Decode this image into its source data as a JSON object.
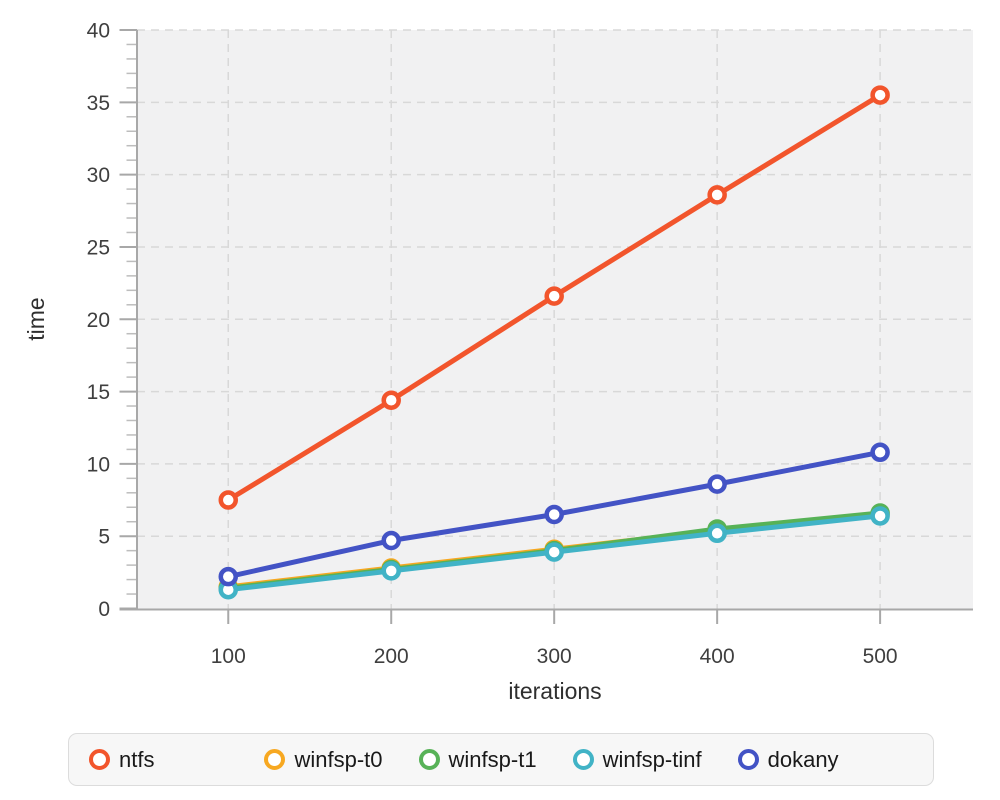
{
  "chart_data": {
    "type": "line",
    "title": "",
    "xlabel": "iterations",
    "ylabel": "time",
    "x": [
      100,
      200,
      300,
      400,
      500
    ],
    "series": [
      {
        "name": "ntfs",
        "color": "#f2552c",
        "values": [
          7.5,
          14.4,
          21.6,
          28.6,
          35.5
        ]
      },
      {
        "name": "winfsp-t0",
        "color": "#f7a821",
        "values": [
          1.5,
          2.8,
          4.1,
          5.4,
          6.5
        ]
      },
      {
        "name": "winfsp-t1",
        "color": "#57b257",
        "values": [
          1.4,
          2.7,
          4.0,
          5.5,
          6.6
        ]
      },
      {
        "name": "winfsp-tinf",
        "color": "#41b3c6",
        "values": [
          1.3,
          2.6,
          3.9,
          5.2,
          6.4
        ]
      },
      {
        "name": "dokany",
        "color": "#4353c5",
        "values": [
          2.2,
          4.7,
          6.5,
          8.6,
          10.8
        ]
      }
    ],
    "xlim": [
      44,
      557
    ],
    "ylim": [
      0,
      40
    ],
    "x_ticks": [
      100,
      200,
      300,
      400,
      500
    ],
    "y_ticks": [
      0,
      5,
      10,
      15,
      20,
      25,
      30,
      35,
      40
    ],
    "y_minor_step": 1,
    "grid": true,
    "marker": "open-circle",
    "legend_position": "bottom",
    "style": {
      "plot_bg": "#f1f1f2",
      "grid_color": "#d8d8d8",
      "axis_color": "#a8a8a8",
      "minor_tick_color": "#bdbdbd",
      "tick_label_color": "#3f3f3f",
      "axis_title_color": "#2f2f2f",
      "legend_bg": "#f7f7f7",
      "legend_border": "#dcdcdc"
    }
  }
}
